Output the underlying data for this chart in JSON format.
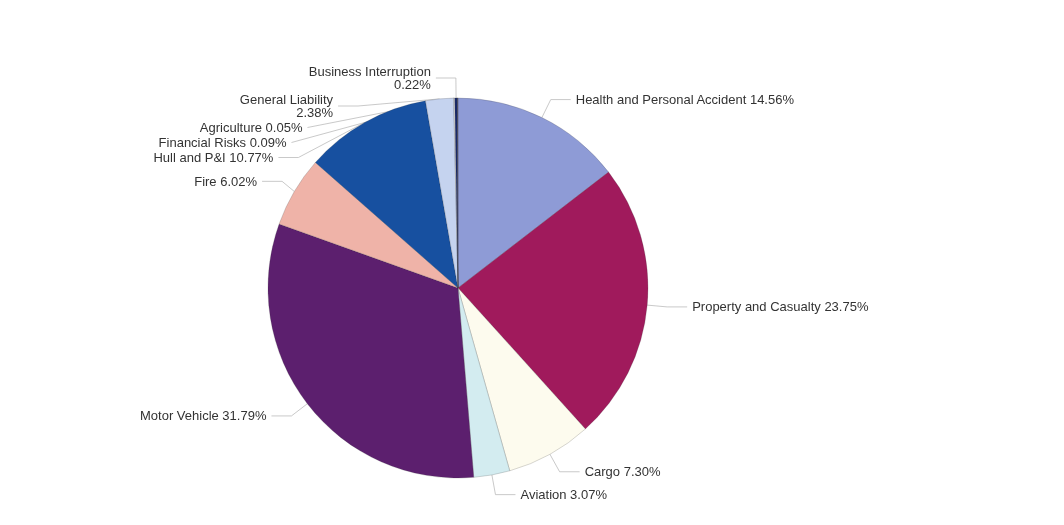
{
  "chart_data": {
    "type": "pie",
    "categories": [
      "Health and Personal Accident",
      "Property and Casualty",
      "Cargo",
      "Aviation",
      "Motor Vehicle",
      "Fire",
      "Hull and P&I",
      "General Liability",
      "Financial Risks",
      "Business Interruption",
      "Agriculture"
    ],
    "values": [
      14.56,
      23.75,
      7.3,
      3.07,
      31.79,
      6.02,
      10.77,
      2.38,
      0.09,
      0.22,
      0.05
    ],
    "value_labels": [
      "14.56%",
      "23.75%",
      "7.30%",
      "3.07%",
      "31.79%",
      "6.02%",
      "10.77%",
      "2.38%",
      "0.09%",
      "0.22%",
      "0.05%"
    ],
    "colors": [
      "#8e9bd6",
      "#a01a5c",
      "#fdfbee",
      "#d3ecf0",
      "#5c1f6e",
      "#efb3a8",
      "#1750a0",
      "#c5d3ef",
      "#f4f4f4",
      "#1a2a6a",
      "#3a3a5a"
    ],
    "legend": false
  }
}
